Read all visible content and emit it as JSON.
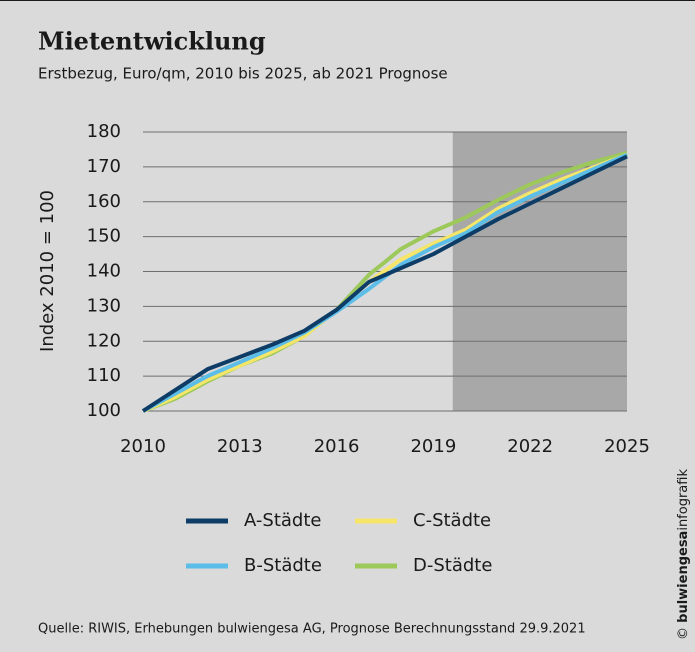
{
  "chart_data": {
    "type": "line",
    "title": "Mietentwicklung",
    "subtitle": "Erstbezug, Euro/qm, 2010 bis 2025, ab 2021 Prognose",
    "y_label": "Index 2010 = 100",
    "source": "Quelle: RIWIS, Erhebungen bulwiengesa AG, Prognose Berechnungsstand 29.9.2021",
    "credit": {
      "symbol": "©",
      "brand": "bulwiengesa",
      "suffix": "infografik"
    },
    "x": [
      2010,
      2011,
      2012,
      2013,
      2014,
      2015,
      2016,
      2017,
      2018,
      2019,
      2020,
      2021,
      2022,
      2023,
      2024,
      2025
    ],
    "series": [
      {
        "name": "A-Städte",
        "color": "#0d3d66",
        "values": [
          100,
          106,
          112,
          115.5,
          119,
          123,
          129,
          137,
          141,
          145,
          150,
          155,
          159.5,
          164,
          168.5,
          173
        ]
      },
      {
        "name": "B-Städte",
        "color": "#5bbde8",
        "values": [
          100,
          105,
          110,
          114,
          118,
          122.5,
          128.5,
          135,
          142,
          147,
          151,
          157,
          161.5,
          165.5,
          169.5,
          173.5
        ]
      },
      {
        "name": "C-Städte",
        "color": "#f5e66a",
        "values": [
          100,
          104,
          109,
          113,
          117,
          121.5,
          129,
          137,
          143.5,
          148,
          152,
          158,
          162.5,
          166.5,
          170,
          173.5
        ]
      },
      {
        "name": "D-Städte",
        "color": "#9dc85a",
        "values": [
          100,
          103.5,
          108.5,
          113,
          116.5,
          121.5,
          129,
          139,
          146.5,
          151.5,
          155.5,
          160.5,
          165,
          168.5,
          171.5,
          174
        ]
      }
    ],
    "xlim": [
      2010,
      2025
    ],
    "xticks": [
      2010,
      2013,
      2016,
      2019,
      2022,
      2025
    ],
    "ylim": [
      100,
      180
    ],
    "yticks": [
      100,
      110,
      120,
      130,
      140,
      150,
      160,
      170,
      180
    ],
    "grid": true,
    "shaded_xrange": [
      2019.6,
      2025
    ],
    "shade_color": "#a8a8a8"
  }
}
